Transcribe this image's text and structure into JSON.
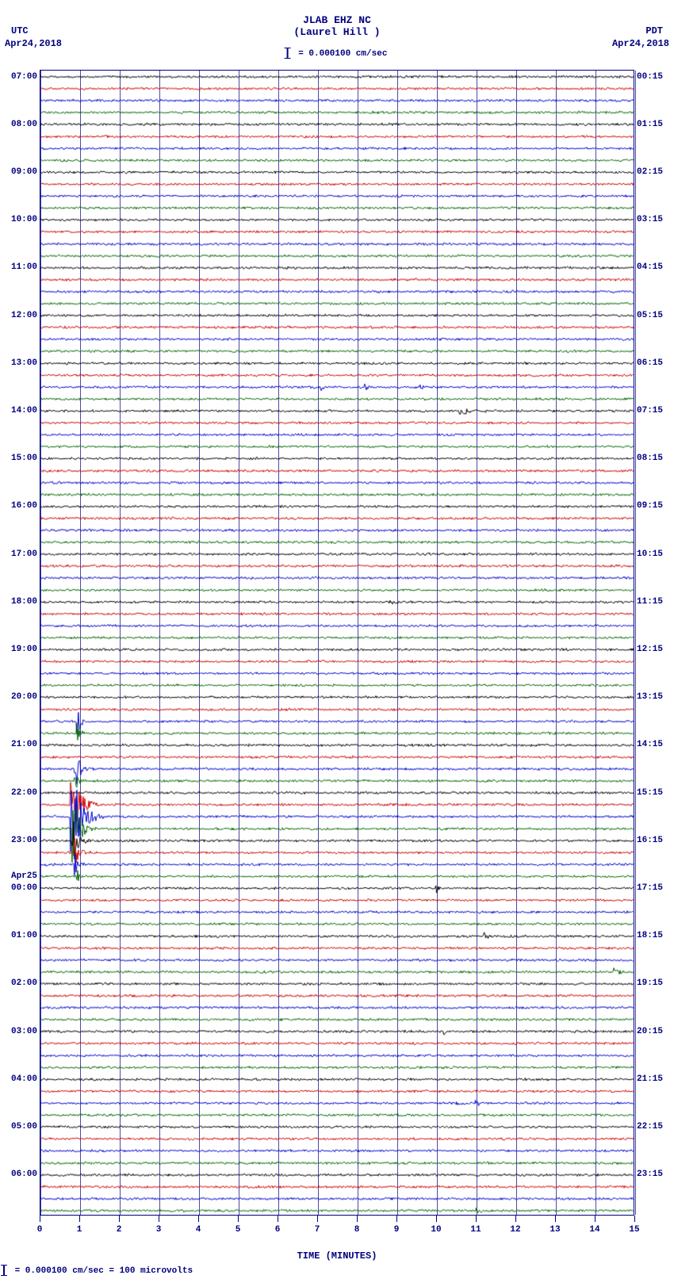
{
  "header": {
    "title_main": "JLAB EHZ NC",
    "title_sub": "(Laurel Hill )",
    "utc_label": "UTC",
    "utc_date": "Apr24,2018",
    "pdt_label": "PDT",
    "pdt_date": "Apr24,2018",
    "scale_ref": "= 0.000100 cm/sec"
  },
  "footer": {
    "scale_text": "= 0.000100 cm/sec =    100 microvolts"
  },
  "xaxis": {
    "title": "TIME (MINUTES)",
    "min": 0,
    "max": 15,
    "ticks": [
      0,
      1,
      2,
      3,
      4,
      5,
      6,
      7,
      8,
      9,
      10,
      11,
      12,
      13,
      14,
      15
    ],
    "grid_color": "#000080"
  },
  "plot": {
    "background": "#ffffff",
    "border_color": "#000080",
    "trace_colors": [
      "#000000",
      "#cc0000",
      "#0000cc",
      "#006600"
    ],
    "trace_noise_amp": 1.1,
    "n_traces": 96,
    "left_hour_labels": [
      {
        "idx": 0,
        "text": "07:00"
      },
      {
        "idx": 4,
        "text": "08:00"
      },
      {
        "idx": 8,
        "text": "09:00"
      },
      {
        "idx": 12,
        "text": "10:00"
      },
      {
        "idx": 16,
        "text": "11:00"
      },
      {
        "idx": 20,
        "text": "12:00"
      },
      {
        "idx": 24,
        "text": "13:00"
      },
      {
        "idx": 28,
        "text": "14:00"
      },
      {
        "idx": 32,
        "text": "15:00"
      },
      {
        "idx": 36,
        "text": "16:00"
      },
      {
        "idx": 40,
        "text": "17:00"
      },
      {
        "idx": 44,
        "text": "18:00"
      },
      {
        "idx": 48,
        "text": "19:00"
      },
      {
        "idx": 52,
        "text": "20:00"
      },
      {
        "idx": 56,
        "text": "21:00"
      },
      {
        "idx": 60,
        "text": "22:00"
      },
      {
        "idx": 64,
        "text": "23:00"
      },
      {
        "idx": 67,
        "text": "Apr25"
      },
      {
        "idx": 68,
        "text": "00:00"
      },
      {
        "idx": 72,
        "text": "01:00"
      },
      {
        "idx": 76,
        "text": "02:00"
      },
      {
        "idx": 80,
        "text": "03:00"
      },
      {
        "idx": 84,
        "text": "04:00"
      },
      {
        "idx": 88,
        "text": "05:00"
      },
      {
        "idx": 92,
        "text": "06:00"
      }
    ],
    "right_hour_labels": [
      {
        "idx": 0,
        "text": "00:15"
      },
      {
        "idx": 4,
        "text": "01:15"
      },
      {
        "idx": 8,
        "text": "02:15"
      },
      {
        "idx": 12,
        "text": "03:15"
      },
      {
        "idx": 16,
        "text": "04:15"
      },
      {
        "idx": 20,
        "text": "05:15"
      },
      {
        "idx": 24,
        "text": "06:15"
      },
      {
        "idx": 28,
        "text": "07:15"
      },
      {
        "idx": 32,
        "text": "08:15"
      },
      {
        "idx": 36,
        "text": "09:15"
      },
      {
        "idx": 40,
        "text": "10:15"
      },
      {
        "idx": 44,
        "text": "11:15"
      },
      {
        "idx": 48,
        "text": "12:15"
      },
      {
        "idx": 52,
        "text": "13:15"
      },
      {
        "idx": 56,
        "text": "14:15"
      },
      {
        "idx": 60,
        "text": "15:15"
      },
      {
        "idx": 64,
        "text": "16:15"
      },
      {
        "idx": 68,
        "text": "17:15"
      },
      {
        "idx": 72,
        "text": "18:15"
      },
      {
        "idx": 76,
        "text": "19:15"
      },
      {
        "idx": 80,
        "text": "20:15"
      },
      {
        "idx": 84,
        "text": "21:15"
      },
      {
        "idx": 88,
        "text": "22:15"
      },
      {
        "idx": 92,
        "text": "23:15"
      }
    ],
    "events": [
      {
        "trace": 28,
        "x_min": 10.6,
        "amp": 8,
        "width": 0.6
      },
      {
        "trace": 26,
        "x_min": 8.2,
        "amp": 5,
        "width": 0.3
      },
      {
        "trace": 26,
        "x_min": 7.1,
        "amp": 4,
        "width": 0.2
      },
      {
        "trace": 26,
        "x_min": 9.6,
        "amp": 4,
        "width": 0.2
      },
      {
        "trace": 44,
        "x_min": 8.8,
        "amp": 5,
        "width": 0.3
      },
      {
        "trace": 54,
        "x_min": 0.9,
        "amp": 28,
        "width": 0.25
      },
      {
        "trace": 55,
        "x_min": 0.9,
        "amp": 18,
        "width": 0.25
      },
      {
        "trace": 58,
        "x_min": 0.85,
        "amp": 35,
        "width": 0.35
      },
      {
        "trace": 59,
        "x_min": 0.85,
        "amp": 22,
        "width": 0.3
      },
      {
        "trace": 61,
        "x_min": 0.75,
        "amp": 55,
        "width": 0.6
      },
      {
        "trace": 62,
        "x_min": 0.75,
        "amp": 70,
        "width": 0.7
      },
      {
        "trace": 63,
        "x_min": 0.8,
        "amp": 50,
        "width": 0.5
      },
      {
        "trace": 64,
        "x_min": 0.8,
        "amp": 35,
        "width": 0.4
      },
      {
        "trace": 65,
        "x_min": 0.85,
        "amp": 25,
        "width": 0.35
      },
      {
        "trace": 66,
        "x_min": 0.85,
        "amp": 18,
        "width": 0.3
      },
      {
        "trace": 67,
        "x_min": 0.9,
        "amp": 12,
        "width": 0.25
      },
      {
        "trace": 68,
        "x_min": 10.0,
        "amp": 6,
        "width": 0.3
      },
      {
        "trace": 72,
        "x_min": 11.2,
        "amp": 6,
        "width": 0.3
      },
      {
        "trace": 75,
        "x_min": 14.5,
        "amp": 6,
        "width": 0.4
      },
      {
        "trace": 80,
        "x_min": 10.2,
        "amp": 5,
        "width": 0.2
      },
      {
        "trace": 86,
        "x_min": 10.5,
        "amp": 5,
        "width": 0.3
      },
      {
        "trace": 86,
        "x_min": 11.0,
        "amp": 5,
        "width": 0.3
      },
      {
        "trace": 95,
        "x_min": 11.0,
        "amp": 7,
        "width": 0.35
      }
    ]
  }
}
